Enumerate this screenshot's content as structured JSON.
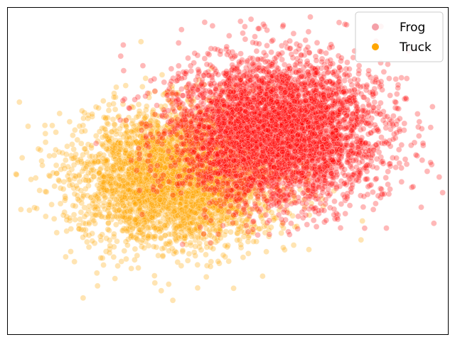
{
  "chart_data": {
    "type": "scatter",
    "title": "",
    "xlabel": "",
    "ylabel": "",
    "xlim": [
      -5.2,
      10.0
    ],
    "ylim": [
      -5.0,
      8.5
    ],
    "grid": false,
    "ticks": false,
    "legend": {
      "placement": "top-right"
    },
    "series": [
      {
        "name": "Frog",
        "color": "#ff0000",
        "legend_color": "#f4a0a8",
        "opacity": 0.28,
        "cluster": {
          "center": [
            4.0,
            3.4
          ],
          "spread": [
            1.75,
            1.45
          ],
          "count": 5000
        },
        "points": [
          [
            0.8,
            7.6
          ],
          [
            1.6,
            7.9
          ],
          [
            6.5,
            7.8
          ],
          [
            9.0,
            3.2
          ],
          [
            9.1,
            3.5
          ],
          [
            9.4,
            2.1
          ],
          [
            9.7,
            1.5
          ],
          [
            8.4,
            1.3
          ],
          [
            8.2,
            1.9
          ],
          [
            7.8,
            0.8
          ],
          [
            7.1,
            0.7
          ],
          [
            8.0,
            1.0
          ],
          [
            5.2,
            0.6
          ],
          [
            4.6,
            0.4
          ],
          [
            2.5,
            6.5
          ],
          [
            0.7,
            6.1
          ],
          [
            -1.2,
            5.9
          ],
          [
            -1.3,
            6.5
          ],
          [
            7.2,
            5.3
          ],
          [
            8.8,
            1.1
          ],
          [
            3.0,
            7.2
          ],
          [
            5.5,
            6.0
          ]
        ]
      },
      {
        "name": "Truck",
        "color": "#ffa500",
        "legend_color": "#ffa500",
        "opacity": 0.3,
        "cluster": {
          "center": [
            0.7,
            1.5
          ],
          "spread": [
            1.7,
            1.35
          ],
          "count": 4200
        },
        "points": [
          [
            -4.8,
            4.6
          ],
          [
            -4.9,
            1.6
          ],
          [
            -4.4,
            1.4
          ],
          [
            -4.5,
            3.6
          ],
          [
            -0.6,
            7.1
          ],
          [
            -3.2,
            -1.8
          ],
          [
            -2.6,
            -3.5
          ],
          [
            -2.1,
            -3.0
          ],
          [
            0.5,
            -3.6
          ],
          [
            1.8,
            -2.2
          ],
          [
            10.0,
            -0.2
          ],
          [
            7.0,
            -1.1
          ],
          [
            5.2,
            -1.5
          ],
          [
            -4.2,
            0.2
          ],
          [
            -3.6,
            2.4
          ],
          [
            -2.9,
            -2.0
          ],
          [
            0.1,
            -3.2
          ],
          [
            3.6,
            -2.6
          ],
          [
            6.2,
            4.1
          ],
          [
            -3.9,
            0.9
          ],
          [
            -1.5,
            -2.7
          ],
          [
            2.6,
            -3.1
          ]
        ]
      }
    ]
  }
}
